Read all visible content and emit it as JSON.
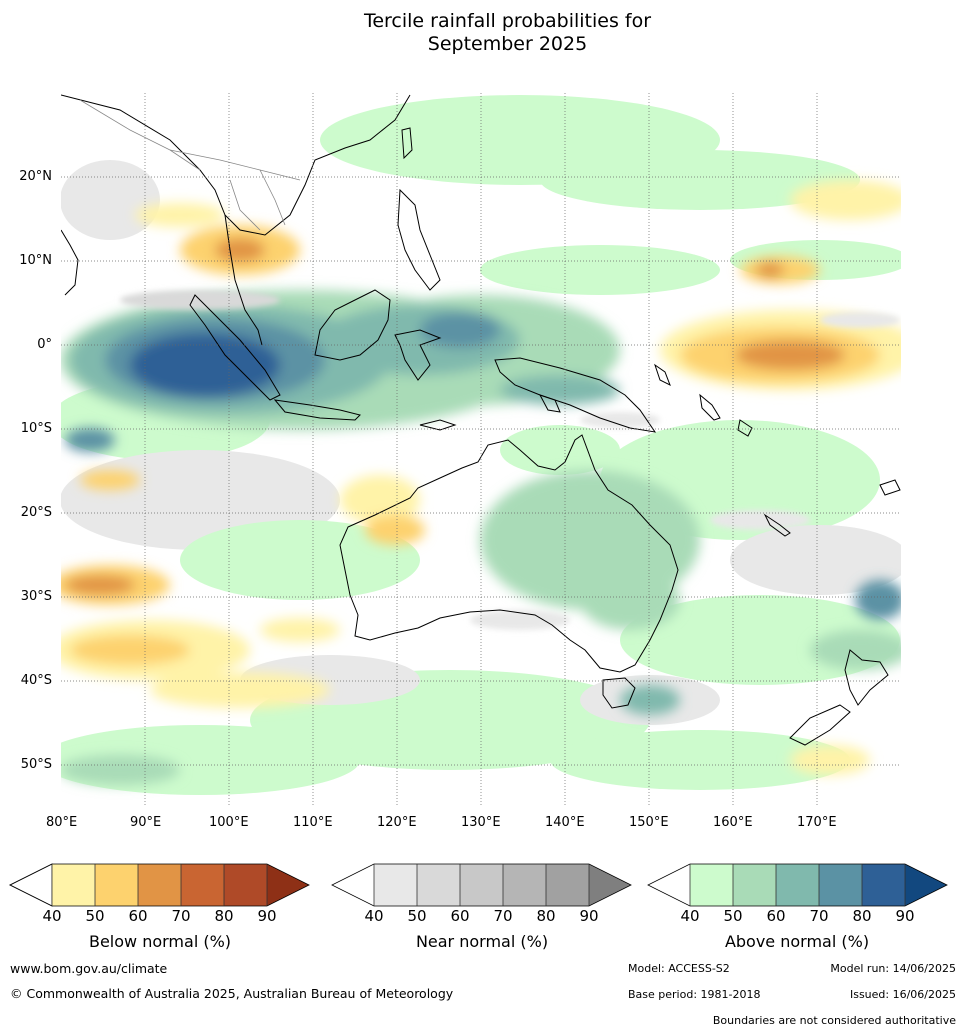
{
  "title_line1": "Tercile rainfall probabilities for",
  "title_line2": "September 2025",
  "map": {
    "lon_labels": [
      "80°E",
      "90°E",
      "100°E",
      "110°E",
      "120°E",
      "130°E",
      "140°E",
      "150°E",
      "160°E",
      "170°E"
    ],
    "lat_labels": [
      "20°N",
      "10°N",
      "0°",
      "10°S",
      "20°S",
      "30°S",
      "40°S",
      "50°S"
    ],
    "extent": {
      "lon": [
        80,
        180
      ],
      "lat": [
        -55,
        30
      ]
    },
    "grid": "dotted"
  },
  "legend": {
    "ticks": [
      "40",
      "50",
      "60",
      "70",
      "80",
      "90"
    ],
    "below": {
      "label": "Below normal (%)",
      "colors": [
        "#fff3a8",
        "#fdd26e",
        "#e19445",
        "#c96532",
        "#af4a28",
        "#8e3016"
      ]
    },
    "near": {
      "label": "Near normal (%)",
      "colors": [
        "#e8e8e8",
        "#d9d9d9",
        "#c8c8c8",
        "#b5b5b5",
        "#a1a1a1",
        "#7f7f7f"
      ]
    },
    "above": {
      "label": "Above normal (%)",
      "colors": [
        "#cdfbcd",
        "#a9dbb7",
        "#80b9ad",
        "#5b92a4",
        "#2e6096",
        "#12487f"
      ]
    }
  },
  "footer": {
    "website": "www.bom.gov.au/climate",
    "copyright": "© Commonwealth of Australia 2025, Australian Bureau of Meteorology",
    "model": "Model: ACCESS-S2",
    "model_run": "Model run: 14/06/2025",
    "base_period": "Base period: 1981-2018",
    "issued": "Issued: 16/06/2025",
    "disclaimer": "Boundaries are not considered authoritative"
  }
}
